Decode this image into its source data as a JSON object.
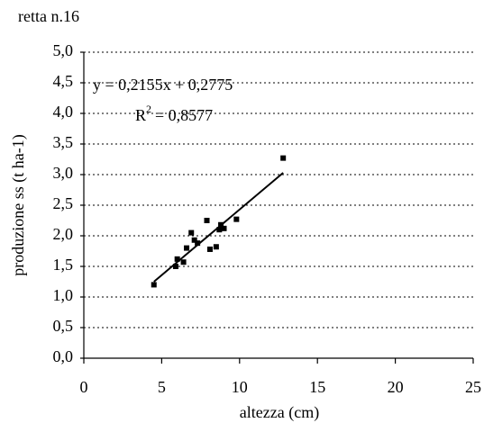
{
  "chart_data": {
    "type": "scatter",
    "title": "retta n.16",
    "x_label": "altezza (cm)",
    "y_label": "produzione ss (t ha-1)",
    "equation": "y = 0,2155x + 0,2775",
    "r2_label": "R",
    "r2_sup": "2",
    "r2_value": "= 0,8577",
    "color": "#000000",
    "grid": true,
    "x": [
      4.5,
      5.9,
      6.0,
      6.4,
      6.6,
      6.9,
      7.1,
      7.3,
      7.9,
      8.1,
      8.5,
      8.7,
      8.8,
      9.0,
      9.8,
      12.8
    ],
    "values": [
      1.2,
      1.5,
      1.62,
      1.57,
      1.8,
      2.05,
      1.93,
      1.88,
      2.25,
      1.78,
      1.82,
      2.1,
      2.18,
      2.12,
      2.27,
      3.27
    ],
    "trendline": {
      "x": [
        4.5,
        12.8
      ],
      "values": [
        1.25,
        3.03
      ]
    },
    "xlim": [
      0,
      25
    ],
    "xticks": [
      0,
      5,
      10,
      15,
      20,
      25
    ],
    "ylim": [
      0,
      5
    ],
    "yticks": [
      {
        "value": 0,
        "label": "0,0"
      },
      {
        "value": 0.5,
        "label": "0,5"
      },
      {
        "value": 1,
        "label": "1,0"
      },
      {
        "value": 1.5,
        "label": "1,5"
      },
      {
        "value": 2,
        "label": "2,0"
      },
      {
        "value": 2.5,
        "label": "2,5"
      },
      {
        "value": 3,
        "label": "3,0"
      },
      {
        "value": 3.5,
        "label": "3,5"
      },
      {
        "value": 4,
        "label": "4,0"
      },
      {
        "value": 4.5,
        "label": "4,5"
      },
      {
        "value": 5,
        "label": "5,0"
      }
    ]
  }
}
